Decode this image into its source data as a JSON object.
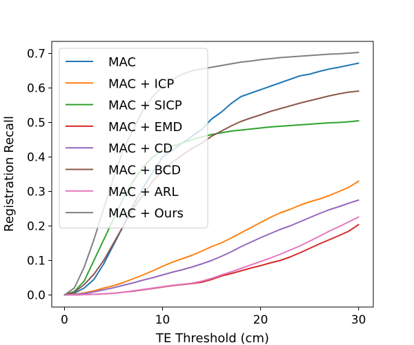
{
  "chart_data": {
    "type": "line",
    "title": "",
    "xlabel": "TE Threshold (cm)",
    "ylabel": "Registration Recall",
    "xlim": [
      -1.3,
      31.5
    ],
    "ylim": [
      -0.035,
      0.735
    ],
    "xticks": [
      0,
      10,
      20,
      30
    ],
    "xtick_labels": [
      "0",
      "10",
      "20",
      "30"
    ],
    "yticks": [
      0.0,
      0.1,
      0.2,
      0.3,
      0.4,
      0.5,
      0.6,
      0.7
    ],
    "ytick_labels": [
      "0.0",
      "0.1",
      "0.2",
      "0.3",
      "0.4",
      "0.5",
      "0.6",
      "0.7"
    ],
    "grid": false,
    "legend_position": "top-left",
    "x": [
      0,
      1,
      2,
      3,
      4,
      5,
      6,
      7,
      8,
      9,
      10,
      11,
      12,
      13,
      14,
      15,
      16,
      17,
      18,
      19,
      20,
      21,
      22,
      23,
      24,
      25,
      26,
      27,
      28,
      29,
      30
    ],
    "series": [
      {
        "name": "MAC",
        "color": "#1f77b4",
        "values": [
          0.0,
          0.005,
          0.02,
          0.045,
          0.09,
          0.145,
          0.2,
          0.26,
          0.31,
          0.355,
          0.4,
          0.42,
          0.44,
          0.46,
          0.48,
          0.51,
          0.53,
          0.555,
          0.575,
          0.585,
          0.595,
          0.605,
          0.615,
          0.625,
          0.635,
          0.64,
          0.648,
          0.655,
          0.66,
          0.666,
          0.672
        ]
      },
      {
        "name": "MAC + ICP",
        "color": "#ff7f0e",
        "values": [
          0.0,
          0.002,
          0.006,
          0.012,
          0.02,
          0.027,
          0.036,
          0.047,
          0.058,
          0.07,
          0.083,
          0.095,
          0.105,
          0.115,
          0.127,
          0.14,
          0.151,
          0.165,
          0.18,
          0.195,
          0.21,
          0.225,
          0.238,
          0.248,
          0.26,
          0.27,
          0.278,
          0.288,
          0.3,
          0.312,
          0.33
        ]
      },
      {
        "name": "MAC + SICP",
        "color": "#2ca02c",
        "values": [
          0.0,
          0.01,
          0.04,
          0.1,
          0.16,
          0.22,
          0.28,
          0.33,
          0.37,
          0.4,
          0.42,
          0.432,
          0.44,
          0.45,
          0.458,
          0.465,
          0.47,
          0.475,
          0.478,
          0.481,
          0.484,
          0.487,
          0.489,
          0.491,
          0.493,
          0.495,
          0.497,
          0.499,
          0.5,
          0.502,
          0.505
        ]
      },
      {
        "name": "MAC + EMD",
        "color": "#d62728",
        "values": [
          0.0,
          0.0,
          0.001,
          0.002,
          0.003,
          0.005,
          0.008,
          0.011,
          0.015,
          0.019,
          0.023,
          0.027,
          0.03,
          0.033,
          0.037,
          0.045,
          0.055,
          0.062,
          0.07,
          0.078,
          0.085,
          0.093,
          0.1,
          0.11,
          0.122,
          0.135,
          0.148,
          0.16,
          0.172,
          0.185,
          0.204
        ]
      },
      {
        "name": "MAC + CD",
        "color": "#9467bd",
        "values": [
          0.0,
          0.001,
          0.004,
          0.009,
          0.015,
          0.021,
          0.028,
          0.035,
          0.043,
          0.05,
          0.058,
          0.066,
          0.073,
          0.081,
          0.09,
          0.1,
          0.112,
          0.125,
          0.14,
          0.153,
          0.166,
          0.178,
          0.19,
          0.2,
          0.212,
          0.224,
          0.236,
          0.247,
          0.256,
          0.266,
          0.275
        ]
      },
      {
        "name": "MAC + BCD",
        "color": "#8c564b",
        "values": [
          0.0,
          0.008,
          0.03,
          0.06,
          0.1,
          0.15,
          0.2,
          0.25,
          0.29,
          0.33,
          0.36,
          0.385,
          0.405,
          0.425,
          0.44,
          0.46,
          0.475,
          0.49,
          0.503,
          0.513,
          0.522,
          0.532,
          0.54,
          0.548,
          0.556,
          0.563,
          0.57,
          0.577,
          0.583,
          0.588,
          0.591
        ]
      },
      {
        "name": "MAC + ARL",
        "color": "#e377c2",
        "values": [
          0.0,
          0.0,
          0.001,
          0.002,
          0.003,
          0.005,
          0.008,
          0.012,
          0.016,
          0.02,
          0.024,
          0.028,
          0.031,
          0.034,
          0.04,
          0.048,
          0.058,
          0.067,
          0.077,
          0.087,
          0.097,
          0.107,
          0.118,
          0.13,
          0.142,
          0.156,
          0.17,
          0.185,
          0.198,
          0.212,
          0.226
        ]
      },
      {
        "name": "MAC + Ours",
        "color": "#7f7f7f",
        "values": [
          0.0,
          0.02,
          0.08,
          0.16,
          0.25,
          0.34,
          0.42,
          0.48,
          0.535,
          0.575,
          0.605,
          0.625,
          0.64,
          0.65,
          0.655,
          0.66,
          0.665,
          0.67,
          0.675,
          0.678,
          0.682,
          0.685,
          0.688,
          0.69,
          0.692,
          0.694,
          0.696,
          0.698,
          0.699,
          0.701,
          0.703
        ]
      }
    ]
  }
}
